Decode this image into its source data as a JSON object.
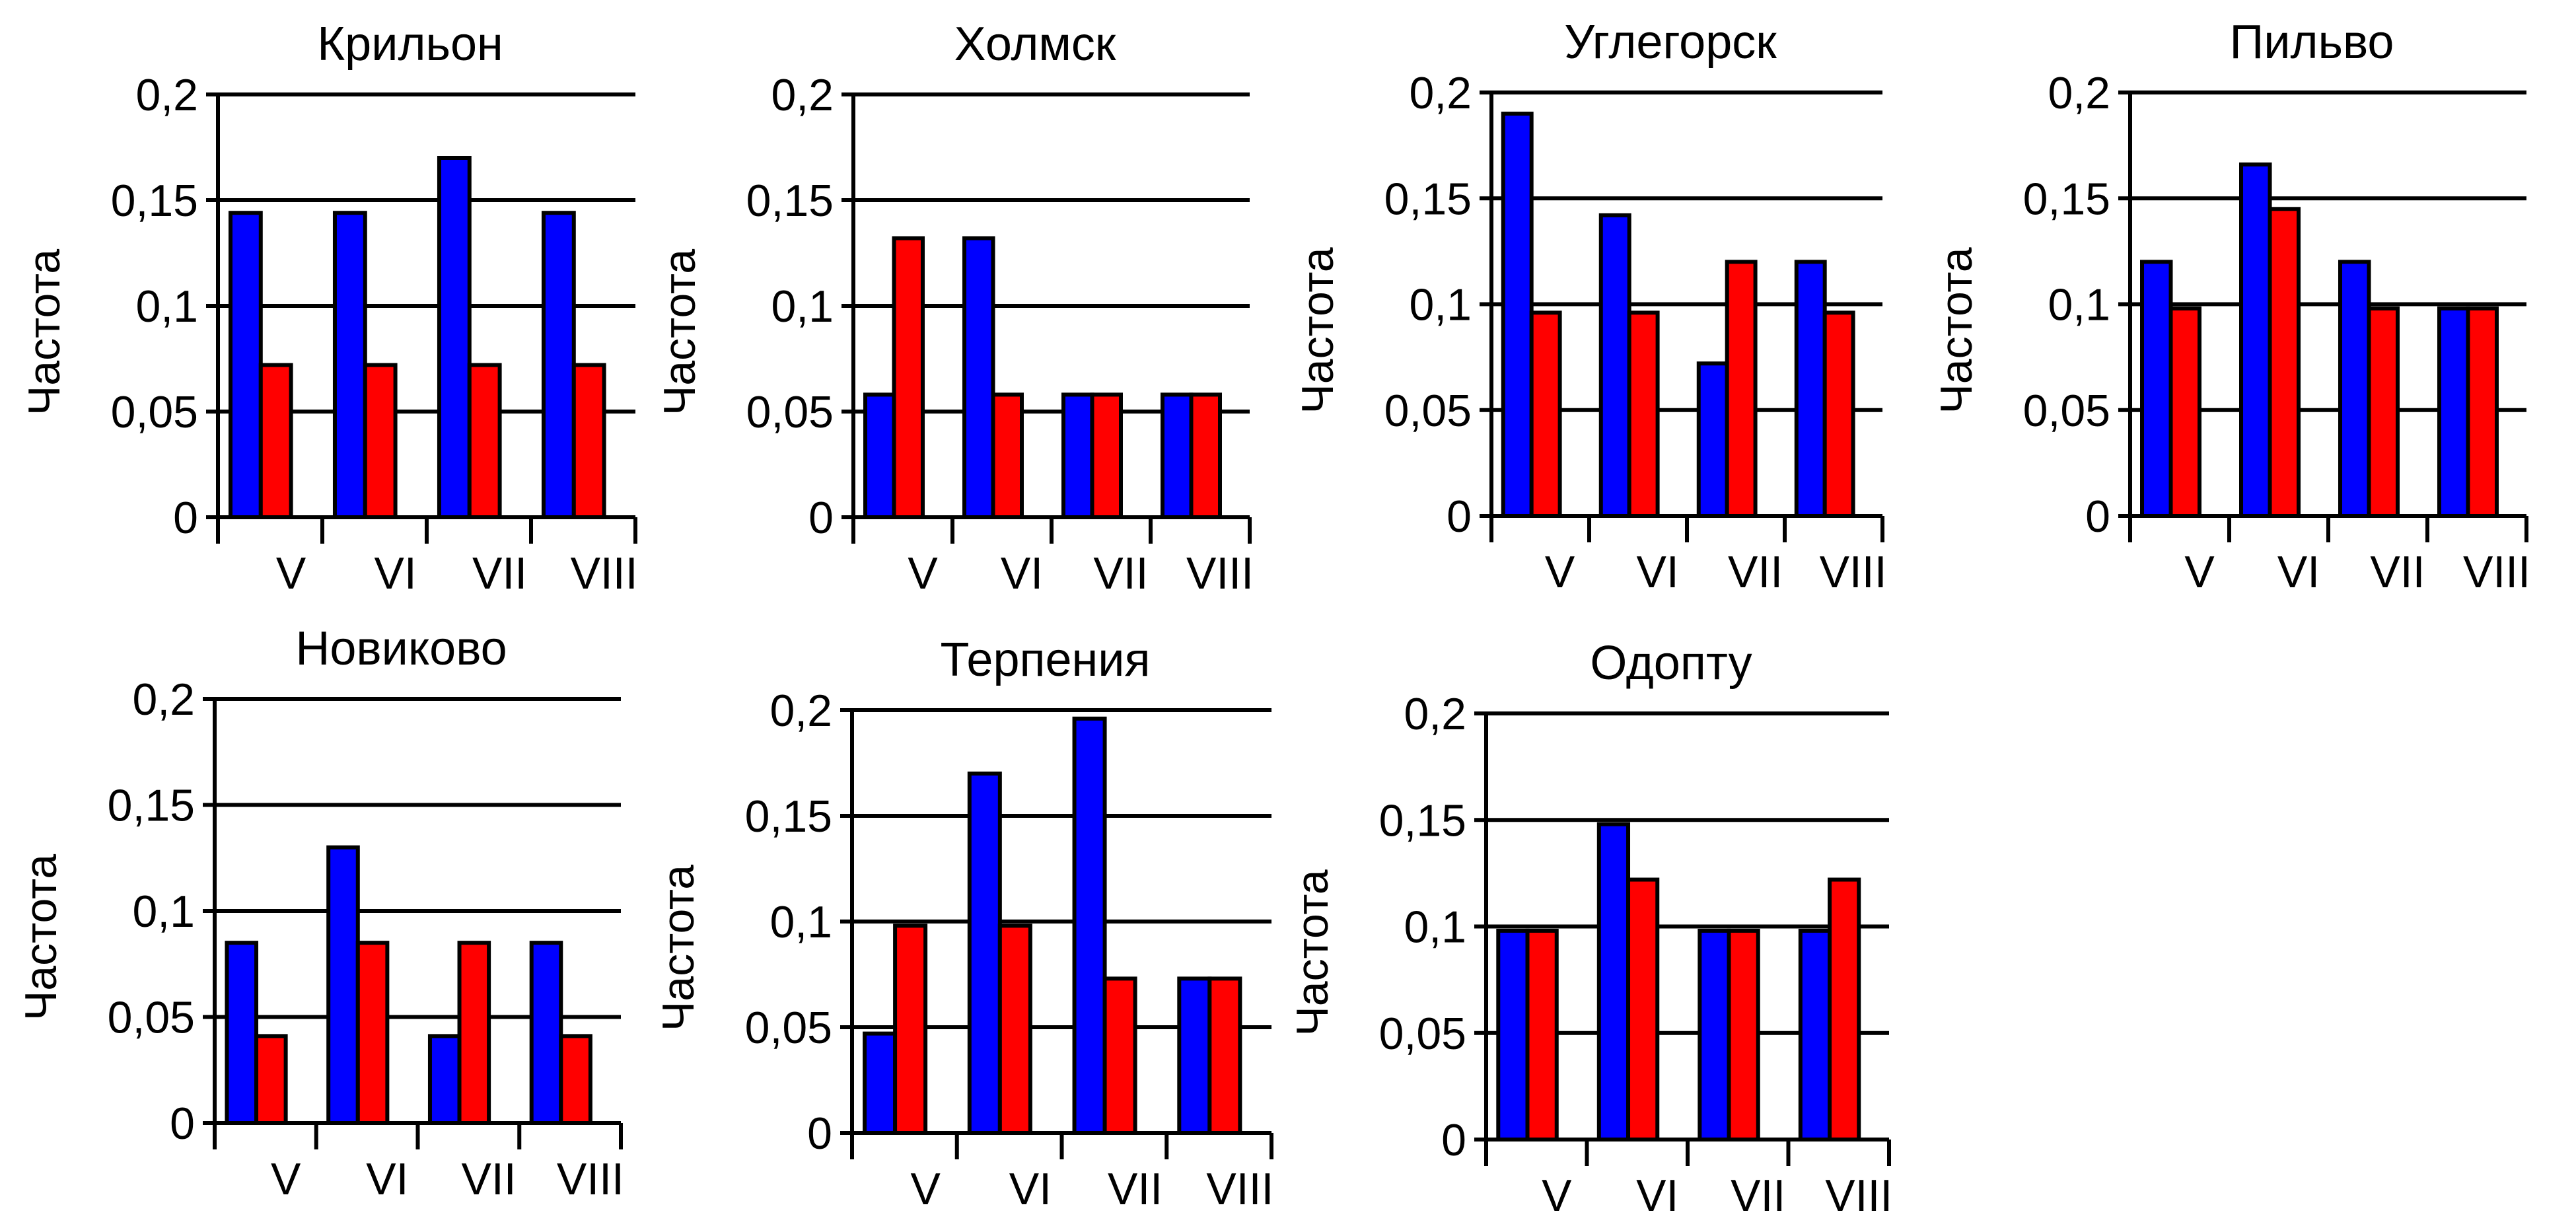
{
  "chart_data": [
    {
      "type": "bar",
      "title": "Крильон",
      "ylabel": "Частота",
      "xlabel": "",
      "categories": [
        "V",
        "VI",
        "VII",
        "VIII"
      ],
      "ylim": [
        0,
        0.2
      ],
      "yticks": [
        "0",
        "0,05",
        "0,1",
        "0,15",
        "0,2"
      ],
      "grid": true,
      "series": [
        {
          "name": "blue",
          "color": "#0000ff",
          "values": [
            0.144,
            0.144,
            0.17,
            0.144
          ]
        },
        {
          "name": "red",
          "color": "#ff0000",
          "values": [
            0.072,
            0.072,
            0.072,
            0.072
          ]
        }
      ]
    },
    {
      "type": "bar",
      "title": "Холмск",
      "ylabel": "Частота",
      "xlabel": "",
      "categories": [
        "V",
        "VI",
        "VII",
        "VIII"
      ],
      "ylim": [
        0,
        0.2
      ],
      "yticks": [
        "0",
        "0,05",
        "0,1",
        "0,15",
        "0,2"
      ],
      "grid": true,
      "series": [
        {
          "name": "blue",
          "color": "#0000ff",
          "values": [
            0.058,
            0.132,
            0.058,
            0.058
          ]
        },
        {
          "name": "red",
          "color": "#ff0000",
          "values": [
            0.132,
            0.058,
            0.058,
            0.058
          ]
        }
      ]
    },
    {
      "type": "bar",
      "title": "Углегорск",
      "ylabel": "Частота",
      "xlabel": "",
      "categories": [
        "V",
        "VI",
        "VII",
        "VIII"
      ],
      "ylim": [
        0,
        0.2
      ],
      "yticks": [
        "0",
        "0,05",
        "0,1",
        "0,15",
        "0,2"
      ],
      "grid": true,
      "series": [
        {
          "name": "blue",
          "color": "#0000ff",
          "values": [
            0.19,
            0.142,
            0.072,
            0.12
          ]
        },
        {
          "name": "red",
          "color": "#ff0000",
          "values": [
            0.096,
            0.096,
            0.12,
            0.096
          ]
        }
      ]
    },
    {
      "type": "bar",
      "title": "Пильво",
      "ylabel": "Частота",
      "xlabel": "",
      "categories": [
        "V",
        "VI",
        "VII",
        "VIII"
      ],
      "ylim": [
        0,
        0.2
      ],
      "yticks": [
        "0",
        "0,05",
        "0,1",
        "0,15",
        "0,2"
      ],
      "grid": true,
      "series": [
        {
          "name": "blue",
          "color": "#0000ff",
          "values": [
            0.12,
            0.166,
            0.12,
            0.098
          ]
        },
        {
          "name": "red",
          "color": "#ff0000",
          "values": [
            0.098,
            0.145,
            0.098,
            0.098
          ]
        }
      ]
    },
    {
      "type": "bar",
      "title": "Новиково",
      "ylabel": "Частота",
      "xlabel": "",
      "categories": [
        "V",
        "VI",
        "VII",
        "VIII"
      ],
      "ylim": [
        0,
        0.2
      ],
      "yticks": [
        "0",
        "0,05",
        "0,1",
        "0,15",
        "0,2"
      ],
      "grid": true,
      "series": [
        {
          "name": "blue",
          "color": "#0000ff",
          "values": [
            0.085,
            0.13,
            0.041,
            0.085
          ]
        },
        {
          "name": "red",
          "color": "#ff0000",
          "values": [
            0.041,
            0.085,
            0.085,
            0.041
          ]
        }
      ]
    },
    {
      "type": "bar",
      "title": "Терпения",
      "ylabel": "Частота",
      "xlabel": "",
      "categories": [
        "V",
        "VI",
        "VII",
        "VIII"
      ],
      "ylim": [
        0,
        0.2
      ],
      "yticks": [
        "0",
        "0,05",
        "0,1",
        "0,15",
        "0,2"
      ],
      "grid": true,
      "series": [
        {
          "name": "blue",
          "color": "#0000ff",
          "values": [
            0.047,
            0.17,
            0.196,
            0.073
          ]
        },
        {
          "name": "red",
          "color": "#ff0000",
          "values": [
            0.098,
            0.098,
            0.073,
            0.073
          ]
        }
      ]
    },
    {
      "type": "bar",
      "title": "Одопту",
      "ylabel": "Частота",
      "xlabel": "",
      "categories": [
        "V",
        "VI",
        "VII",
        "VIII"
      ],
      "ylim": [
        0,
        0.2
      ],
      "yticks": [
        "0",
        "0,05",
        "0,1",
        "0,15",
        "0,2"
      ],
      "grid": true,
      "series": [
        {
          "name": "blue",
          "color": "#0000ff",
          "values": [
            0.098,
            0.148,
            0.098,
            0.098
          ]
        },
        {
          "name": "red",
          "color": "#ff0000",
          "values": [
            0.098,
            0.122,
            0.098,
            0.122
          ]
        }
      ]
    }
  ]
}
